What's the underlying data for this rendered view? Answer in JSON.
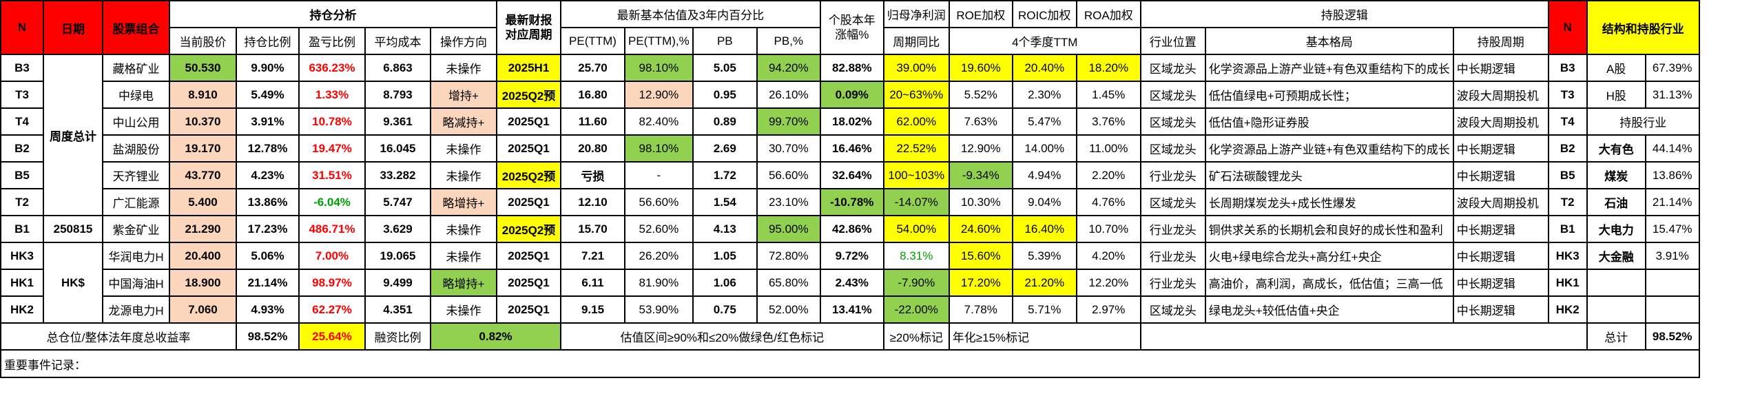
{
  "headers": {
    "n": "N",
    "date": "日期",
    "combo": "股票组合",
    "holding_analysis": "持仓分析",
    "latest_report_1": "最新财报",
    "latest_report_2": "对应周期",
    "valuation": "最新基本估值及3年内百分比",
    "ytd_1": "个股本年",
    "ytd_2": "涨幅%",
    "net_profit": "归母净利润",
    "roe": "ROE加权",
    "roic": "ROIC加权",
    "roa": "ROA加权",
    "logic": "持股逻辑",
    "n2": "N",
    "structure": "结构和持股行业",
    "price": "当前股价",
    "weight": "持仓比例",
    "pnl": "盈亏比例",
    "cost": "平均成本",
    "action": "操作方向",
    "pe": "PE(TTM)",
    "pe_pct": "PE(TTM),%",
    "pb": "PB",
    "pb_pct": "PB,%",
    "yoy": "周期同比",
    "ttm4": "4个季度TTM",
    "position": "行业位置",
    "pattern": "基本格局",
    "period": "持股周期"
  },
  "group_labels": {
    "weekly_total": "周度总计",
    "date": "250815",
    "hk": "HK$"
  },
  "rows": [
    {
      "id": "B3",
      "name": "藏格矿业",
      "price": "50.530",
      "weight": "9.90%",
      "pnl": "636.23%",
      "pnl_color": "red",
      "cost": "6.863",
      "action": "未操作",
      "report": "2025H1",
      "pe": "25.70",
      "pe_pct": "98.10%",
      "pb": "5.05",
      "pb_pct": "94.20%",
      "ytd": "82.88%",
      "yoy": "39.00%",
      "roe": "19.60%",
      "roic": "20.40%",
      "roa": "18.20%",
      "position": "区域龙头",
      "pattern": "化学资源品上游产业链+有色双重结构下的成长",
      "period": "中长期逻辑",
      "r_id": "B3",
      "r_label": "A股",
      "r_value": "67.39%"
    },
    {
      "id": "T3",
      "name": "中绿电",
      "price": "8.910",
      "weight": "5.49%",
      "pnl": "1.33%",
      "pnl_color": "red",
      "cost": "8.793",
      "action": "增持+",
      "report": "2025Q2预",
      "pe": "16.80",
      "pe_pct": "12.90%",
      "pb": "0.95",
      "pb_pct": "26.10%",
      "ytd": "0.09%",
      "yoy": "20~63%%",
      "roe": "5.52%",
      "roic": "2.30%",
      "roa": "1.45%",
      "position": "区域龙头",
      "pattern": "低估值绿电+可预期成长性；",
      "period": "波段大周期投机",
      "r_id": "T3",
      "r_label": "H股",
      "r_value": "31.13%"
    },
    {
      "id": "T4",
      "name": "中山公用",
      "price": "10.370",
      "weight": "3.91%",
      "pnl": "10.78%",
      "pnl_color": "red",
      "cost": "9.361",
      "action": "略减持+",
      "report": "2025Q1",
      "pe": "11.60",
      "pe_pct": "82.40%",
      "pb": "0.89",
      "pb_pct": "99.70%",
      "ytd": "18.02%",
      "yoy": "62.00%",
      "roe": "7.63%",
      "roic": "5.47%",
      "roa": "3.76%",
      "position": "区域龙头",
      "pattern": "低估值+隐形证券股",
      "period": "波段大周期投机",
      "r_id": "T4",
      "r_label": "持股行业",
      "r_value": ""
    },
    {
      "id": "B2",
      "name": "盐湖股份",
      "price": "19.170",
      "weight": "12.78%",
      "pnl": "19.47%",
      "pnl_color": "red",
      "cost": "16.045",
      "action": "未操作",
      "report": "2025Q1",
      "pe": "20.80",
      "pe_pct": "98.10%",
      "pb": "2.69",
      "pb_pct": "30.70%",
      "ytd": "16.46%",
      "yoy": "22.52%",
      "roe": "12.90%",
      "roic": "14.00%",
      "roa": "11.00%",
      "position": "区域龙头",
      "pattern": "化学资源品上游产业链+有色双重结构下的成长",
      "period": "中长期逻辑",
      "r_id": "B2",
      "r_label": "大有色",
      "r_value": "44.14%"
    },
    {
      "id": "B5",
      "name": "天齐锂业",
      "price": "43.770",
      "weight": "4.23%",
      "pnl": "31.51%",
      "pnl_color": "red",
      "cost": "33.282",
      "action": "未操作",
      "report": "2025Q2预",
      "pe": "亏损",
      "pe_pct": "-",
      "pb": "1.72",
      "pb_pct": "56.60%",
      "ytd": "32.64%",
      "yoy": "100~103%",
      "roe": "-9.34%",
      "roic": "4.94%",
      "roa": "2.20%",
      "position": "行业龙头",
      "pattern": "矿石法碳酸锂龙头",
      "period": "中长期逻辑",
      "r_id": "B5",
      "r_label": "煤炭",
      "r_value": "13.86%"
    },
    {
      "id": "T2",
      "name": "广汇能源",
      "price": "5.400",
      "weight": "13.86%",
      "pnl": "-6.04%",
      "pnl_color": "green",
      "cost": "5.747",
      "action": "略增持+",
      "report": "2025Q1",
      "pe": "12.10",
      "pe_pct": "56.60%",
      "pb": "1.54",
      "pb_pct": "23.10%",
      "ytd": "-10.78%",
      "yoy": "-14.07%",
      "roe": "10.30%",
      "roic": "9.04%",
      "roa": "4.76%",
      "position": "区域龙头",
      "pattern": "长周期煤炭龙头+成长性爆发",
      "period": "波段大周期投机",
      "r_id": "T2",
      "r_label": "石油",
      "r_value": "21.14%"
    },
    {
      "id": "B1",
      "name": "紫金矿业",
      "price": "21.290",
      "weight": "17.23%",
      "pnl": "486.71%",
      "pnl_color": "red",
      "cost": "3.629",
      "action": "未操作",
      "report": "2025Q2预",
      "pe": "15.70",
      "pe_pct": "52.60%",
      "pb": "4.13",
      "pb_pct": "95.00%",
      "ytd": "42.86%",
      "yoy": "54.00%",
      "roe": "24.60%",
      "roic": "16.40%",
      "roa": "10.70%",
      "position": "行业龙头",
      "pattern": "铜供求关系的长期机会和良好的成长性和盈利",
      "period": "中长期逻辑",
      "r_id": "B1",
      "r_label": "大电力",
      "r_value": "15.47%"
    },
    {
      "id": "HK3",
      "name": "华润电力H",
      "price": "20.400",
      "weight": "5.06%",
      "pnl": "7.00%",
      "pnl_color": "red",
      "cost": "19.065",
      "action": "未操作",
      "report": "2025Q1",
      "pe": "7.21",
      "pe_pct": "26.20%",
      "pb": "1.05",
      "pb_pct": "72.80%",
      "ytd": "9.72%",
      "yoy": "8.31%",
      "roe": "15.60%",
      "roic": "5.39%",
      "roa": "4.20%",
      "position": "行业龙头",
      "pattern": "火电+绿电综合龙头+高分红+央企",
      "period": "中长期逻辑",
      "r_id": "HK3",
      "r_label": "大金融",
      "r_value": "3.91%"
    },
    {
      "id": "HK1",
      "name": "中国海油H",
      "price": "18.900",
      "weight": "21.14%",
      "pnl": "98.97%",
      "pnl_color": "red",
      "cost": "9.499",
      "action": "略增持+",
      "report": "2025Q1",
      "pe": "6.11",
      "pe_pct": "81.90%",
      "pb": "1.06",
      "pb_pct": "65.80%",
      "ytd": "2.43%",
      "yoy": "-7.90%",
      "roe": "17.20%",
      "roic": "21.20%",
      "roa": "12.20%",
      "position": "行业龙头",
      "pattern": "高油价，高利润，高成长，低估值；三高一低",
      "period": "中长期逻辑",
      "r_id": "HK1",
      "r_label": "",
      "r_value": ""
    },
    {
      "id": "HK2",
      "name": "龙源电力H",
      "price": "7.060",
      "weight": "4.93%",
      "pnl": "62.27%",
      "pnl_color": "red",
      "cost": "4.351",
      "action": "未操作",
      "report": "2025Q1",
      "pe": "9.15",
      "pe_pct": "53.90%",
      "pb": "0.75",
      "pb_pct": "52.00%",
      "ytd": "13.41%",
      "yoy": "-22.00%",
      "roe": "7.78%",
      "roic": "5.71%",
      "roa": "2.97%",
      "position": "区域龙头",
      "pattern": "绿电龙头+较低估值+央企",
      "period": "中长期逻辑",
      "r_id": "HK2",
      "r_label": "",
      "r_value": ""
    }
  ],
  "footer": {
    "label": "总仓位/整体法年度总收益率",
    "total_weight": "98.52%",
    "total_return": "25.64%",
    "margin_label": "融资比例",
    "margin_value": "0.82%",
    "valuation_note": "估值区间≥90%和≤20%做绿色/红色标记",
    "ge20_note": "≥20%标记",
    "annual_note": "年化≥15%标记",
    "total_label": "总计",
    "total_value": "98.52%"
  },
  "note_label": "重要事件记录："
}
